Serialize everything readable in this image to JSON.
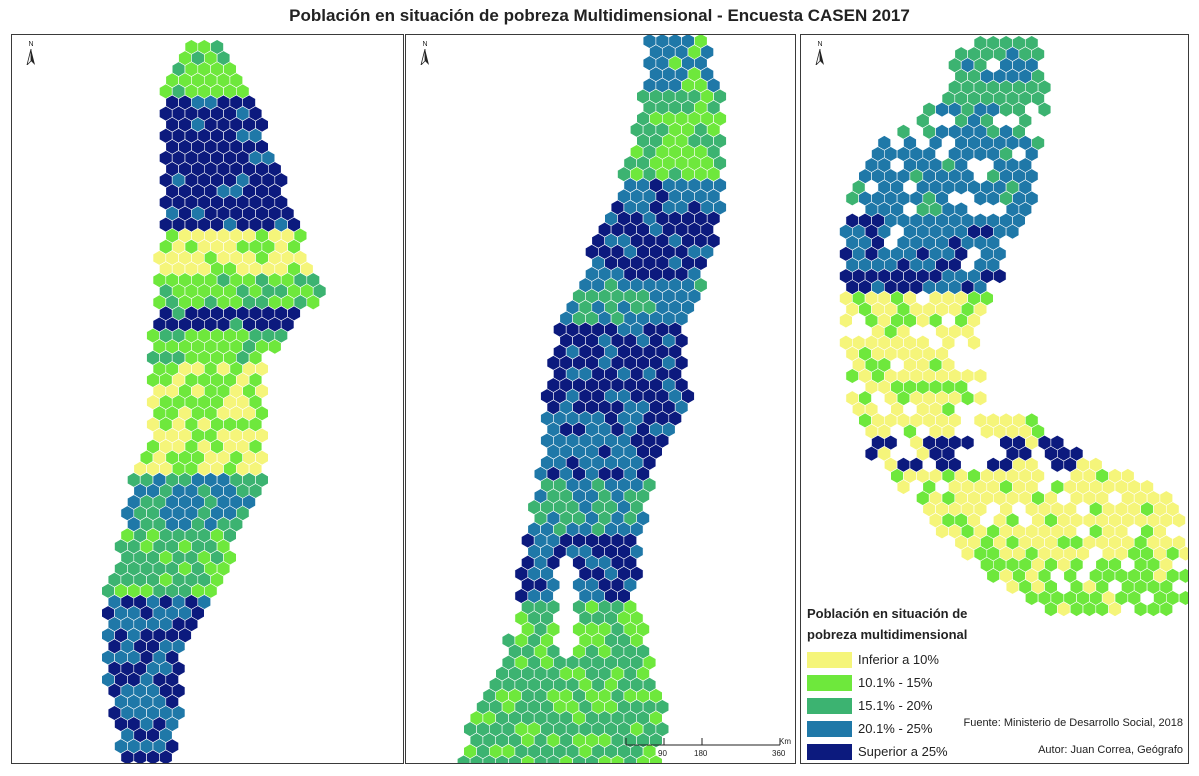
{
  "title": "Población en situación de pobreza Multidimensional - Encuesta CASEN 2017",
  "north_label": "N",
  "legend": {
    "title_line1": "Población en situación de",
    "title_line2": "pobreza multidimensional",
    "classes": [
      {
        "label": "Inferior a 10%",
        "color": "#f5f57a"
      },
      {
        "label": "10.1% - 15%",
        "color": "#6ee83c"
      },
      {
        "label": "15.1% - 20%",
        "color": "#3cb371"
      },
      {
        "label": "20.1% - 25%",
        "color": "#1f78a8"
      },
      {
        "label": "Superior a 25%",
        "color": "#0c1a7e"
      }
    ]
  },
  "scale": {
    "ticks": [
      "90",
      "180",
      "360"
    ],
    "unit": "Km"
  },
  "source": "Fuente: Ministerio de Desarrollo Social, 2018",
  "author": "Autor: Juan Correa, Geógrafo",
  "colors": {
    "frame": "#3a3a3a",
    "class_1": "#f5f57a",
    "class_2": "#6ee83c",
    "class_3": "#3cb371",
    "class_4": "#1f78a8",
    "class_5": "#0c1a7e"
  }
}
